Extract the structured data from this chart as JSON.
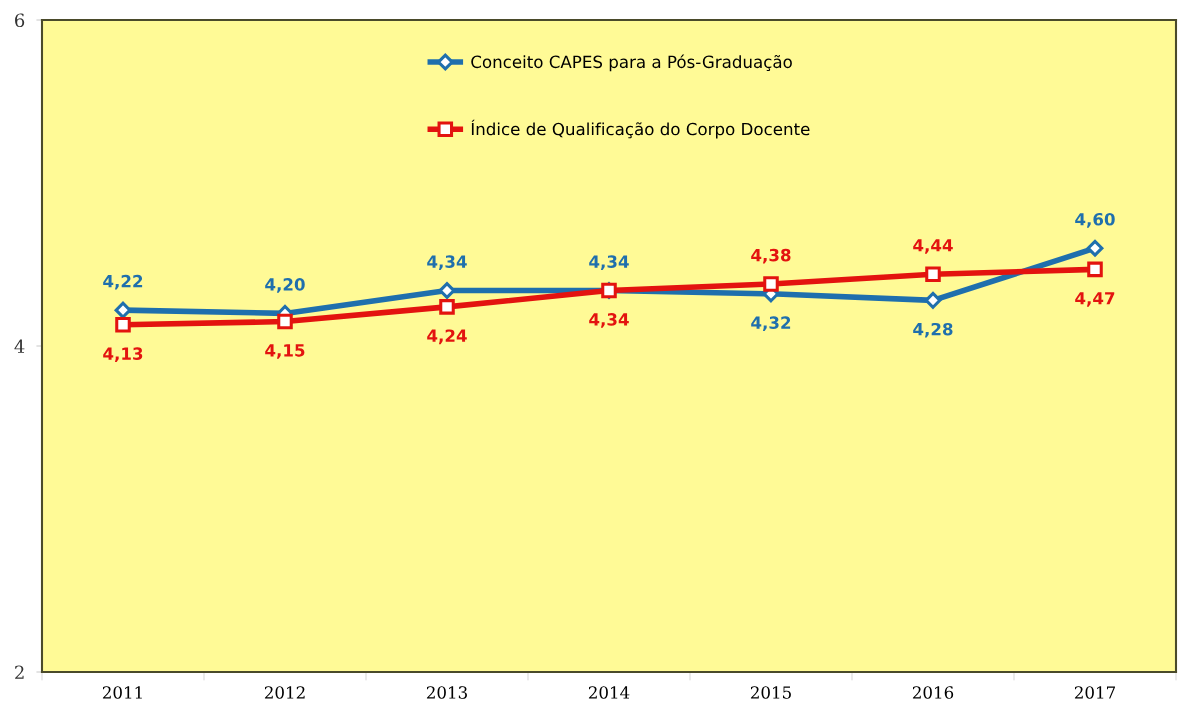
{
  "chart_data": {
    "type": "line",
    "categories": [
      "2011",
      "2012",
      "2013",
      "2014",
      "2015",
      "2016",
      "2017"
    ],
    "series": [
      {
        "name": "Conceito CAPES para a Pós-Graduação",
        "color": "#1f6fad",
        "marker": "diamond",
        "values": [
          4.22,
          4.2,
          4.34,
          4.34,
          4.32,
          4.28,
          4.6
        ],
        "value_labels": [
          "4,22",
          "4,20",
          "4,34",
          "4,34",
          "4,32",
          "4,28",
          "4,60"
        ]
      },
      {
        "name": "Índice de Qualificação do Corpo Docente",
        "color": "#e3130f",
        "marker": "square",
        "values": [
          4.13,
          4.15,
          4.24,
          4.34,
          4.38,
          4.44,
          4.47
        ],
        "value_labels": [
          "4,13",
          "4,15",
          "4,24",
          "4,34",
          "4,38",
          "4,44",
          "4,47"
        ]
      }
    ],
    "ylim": [
      2,
      6
    ],
    "yticks": [
      2,
      4,
      6
    ],
    "grid": false,
    "legend": "top",
    "line_style": "solid"
  }
}
